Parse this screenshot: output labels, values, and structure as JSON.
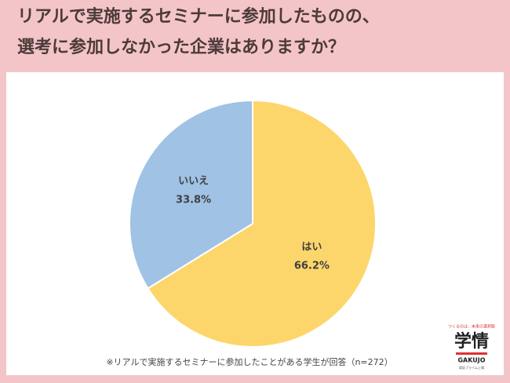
{
  "chart_data": {
    "type": "pie",
    "title_lines": [
      "リアルで実施するセミナーに参加したものの、",
      "選考に参加しなかった企業はありますか？"
    ],
    "categories": [
      "はい",
      "いいえ"
    ],
    "values": [
      66.2,
      33.8
    ],
    "value_labels": [
      "66.2%",
      "33.8%"
    ],
    "colors": [
      "#fdd66b",
      "#9fc2e5"
    ],
    "note": "※リアルで実施するセミナーに参加したことがある学生が回答（n=272）"
  },
  "logo": {
    "tagline": "つくるのは、未来の選択肢",
    "mark": "学情",
    "name": "GAKUJO",
    "sub": "東証プライム上場"
  }
}
